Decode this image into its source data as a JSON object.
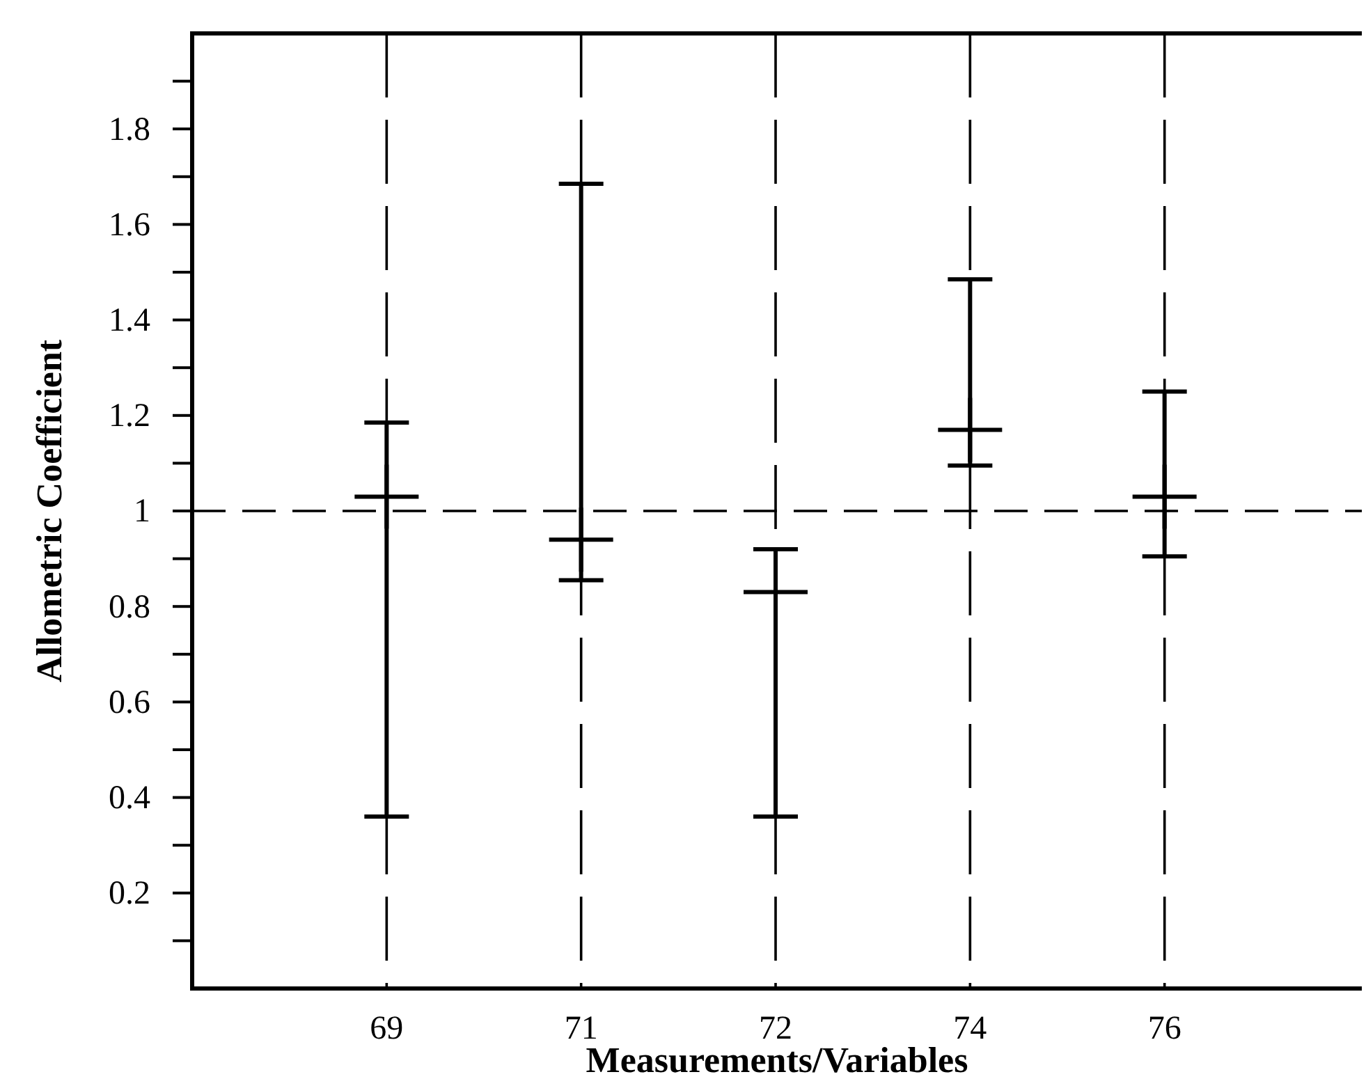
{
  "chart_data": {
    "type": "scatter",
    "xlabel": "Measurements/Variables",
    "ylabel": "Allometric Coefficient",
    "categories": [
      "69",
      "71",
      "72",
      "74",
      "76"
    ],
    "series": [
      {
        "color": "#000000",
        "values": [
          1.03,
          0.94,
          0.83,
          1.17,
          1.03
        ],
        "errors": [
          [
            0.36,
            1.185
          ],
          [
            0.855,
            1.685
          ],
          [
            0.36,
            0.92
          ],
          [
            1.095,
            1.485
          ],
          [
            0.905,
            1.25
          ]
        ]
      }
    ],
    "ylim": [
      0,
      2
    ],
    "yticks": [
      {
        "value": 0.1,
        "label": null
      },
      0.2,
      {
        "value": 0.3,
        "label": null
      },
      0.4,
      {
        "value": 0.5,
        "label": null
      },
      0.6,
      {
        "value": 0.7,
        "label": null
      },
      0.8,
      {
        "value": 0.9,
        "label": null
      },
      1,
      {
        "value": 1.1,
        "label": null
      },
      1.2,
      {
        "value": 1.3,
        "label": null
      },
      1.4,
      {
        "value": 1.5,
        "label": null
      },
      1.6,
      {
        "value": 1.7,
        "label": null
      },
      1.8,
      {
        "value": 1.9,
        "label": null
      }
    ],
    "grid": "x",
    "ref_lines": [
      {
        "axis": "y",
        "value": 1,
        "line_style": "dashed",
        "color": "#000000"
      }
    ]
  }
}
